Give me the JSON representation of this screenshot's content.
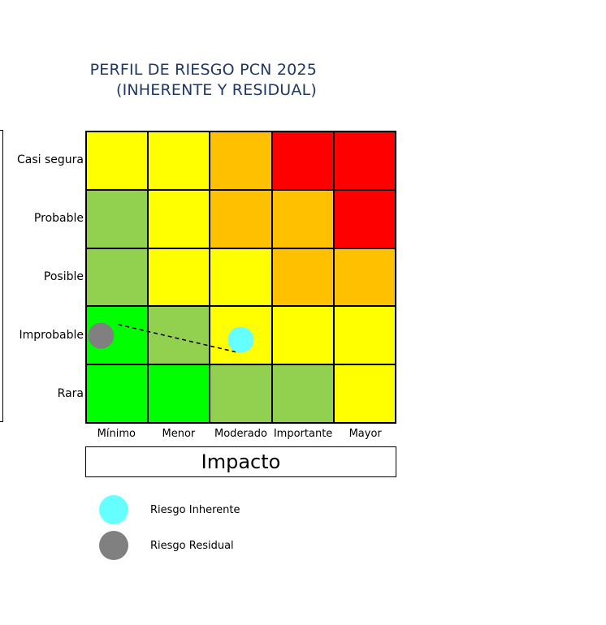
{
  "title": {
    "line1": "PERFIL DE RIESGO PCN 2025",
    "line2": "(INHERENTE Y RESIDUAL)"
  },
  "chart_data": {
    "type": "heatmap",
    "xlabel": "Impacto",
    "ylabel": "",
    "x_categories": [
      "Mínimo",
      "Menor",
      "Moderado",
      "Importante",
      "Mayor"
    ],
    "y_categories": [
      "Casi segura",
      "Probable",
      "Posible",
      "Improbable",
      "Rara"
    ],
    "cells": [
      [
        "#ffff00",
        "#ffff00",
        "#ffc000",
        "#ff0000",
        "#ff0000"
      ],
      [
        "#92d050",
        "#ffff00",
        "#ffc000",
        "#ffc000",
        "#ff0000"
      ],
      [
        "#92d050",
        "#ffff00",
        "#ffff00",
        "#ffc000",
        "#ffc000"
      ],
      [
        "#00ff00",
        "#92d050",
        "#ffff00",
        "#ffff00",
        "#ffff00"
      ],
      [
        "#00ff00",
        "#00ff00",
        "#92d050",
        "#92d050",
        "#ffff00"
      ]
    ],
    "points": [
      {
        "name": "Riesgo Inherente",
        "x": "Moderado",
        "y": "Improbable",
        "color": "#66ffff"
      },
      {
        "name": "Riesgo Residual",
        "x": "Mínimo",
        "y": "Improbable",
        "color": "#808080"
      }
    ],
    "connector": {
      "from": "Riesgo Residual",
      "to": "Riesgo Inherente",
      "style": "dashed"
    }
  },
  "legend": [
    {
      "label": "Riesgo Inherente",
      "color": "#66ffff"
    },
    {
      "label": "Riesgo Residual",
      "color": "#808080"
    }
  ]
}
